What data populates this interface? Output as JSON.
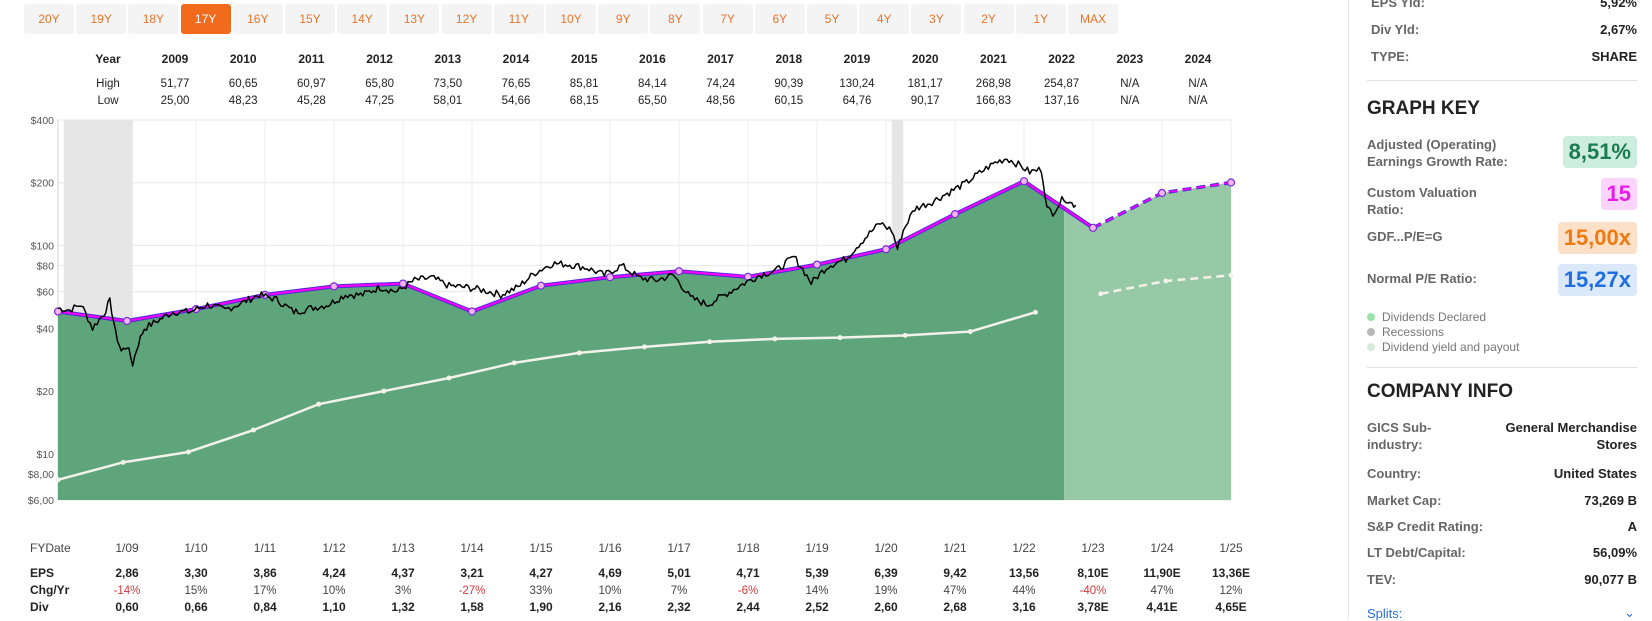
{
  "range_buttons": [
    "20Y",
    "19Y",
    "18Y",
    "17Y",
    "16Y",
    "15Y",
    "14Y",
    "13Y",
    "12Y",
    "11Y",
    "10Y",
    "9Y",
    "8Y",
    "7Y",
    "6Y",
    "5Y",
    "4Y",
    "3Y",
    "2Y",
    "1Y",
    "MAX"
  ],
  "active_range": "17Y",
  "price_table": {
    "year_label": "Year",
    "high_label": "High",
    "low_label": "Low",
    "years": [
      "2009",
      "2010",
      "2011",
      "2012",
      "2013",
      "2014",
      "2015",
      "2016",
      "2017",
      "2018",
      "2019",
      "2020",
      "2021",
      "2022",
      "2023",
      "2024"
    ],
    "high": [
      "51,77",
      "60,65",
      "60,97",
      "65,80",
      "73,50",
      "76,65",
      "85,81",
      "84,14",
      "74,24",
      "90,39",
      "130,24",
      "181,17",
      "268,98",
      "254,87",
      "N/A",
      "N/A"
    ],
    "low": [
      "25,00",
      "48,23",
      "45,28",
      "47,25",
      "58,01",
      "54,66",
      "68,15",
      "65,50",
      "48,56",
      "60,15",
      "64,76",
      "90,17",
      "166,83",
      "137,16",
      "N/A",
      "N/A"
    ]
  },
  "chart_data": {
    "type": "area",
    "title": "",
    "xlabel": "FY Date",
    "ylabel": "",
    "y_scale": "log",
    "ylim": [
      6,
      400
    ],
    "y_ticks": [
      400,
      200,
      100,
      80,
      60,
      40,
      20,
      10,
      8,
      6
    ],
    "y_tick_labels": [
      "$400",
      "$200",
      "$100",
      "$80",
      "$60",
      "$40",
      "$20",
      "$10",
      "$8,00",
      "$6,00"
    ],
    "fy_date_label": "FYDate",
    "fy_dates": [
      "1/09",
      "1/10",
      "1/11",
      "1/12",
      "1/13",
      "1/14",
      "1/15",
      "1/16",
      "1/17",
      "1/18",
      "1/19",
      "1/20",
      "1/21",
      "1/22",
      "1/23",
      "1/24",
      "1/25"
    ],
    "x_start": "1/08",
    "recessions": [
      [
        "2/08",
        "2/09"
      ],
      [
        "2/20",
        "4/20"
      ]
    ],
    "projection_start": "8/22",
    "earnings_value_line": [
      48.2,
      43.4,
      49.5,
      57.9,
      63.6,
      65.6,
      48.2,
      64.1,
      70.4,
      75.2,
      70.7,
      80.9,
      95.9,
      141.3,
      203.4,
      121.5,
      178.5,
      200.4
    ],
    "normal_pe_line": [
      7.5,
      9.1,
      10.2,
      13.0,
      17.3,
      20.0,
      23.1,
      27.3,
      30.5,
      32.6,
      34.5,
      35.6,
      36.1,
      37.0,
      38.6,
      47.8,
      58.6,
      67.5,
      71.9
    ],
    "price_series": [
      [
        "1/08",
        50
      ],
      [
        "3/08",
        49
      ],
      [
        "5/08",
        52
      ],
      [
        "7/08",
        40
      ],
      [
        "9/08",
        47
      ],
      [
        "10/08",
        54
      ],
      [
        "11/08",
        38
      ],
      [
        "12/08",
        31
      ],
      [
        "1/09",
        33
      ],
      [
        "2/09",
        27
      ],
      [
        "3/09",
        34
      ],
      [
        "4/09",
        40
      ],
      [
        "6/09",
        43
      ],
      [
        "9/09",
        48
      ],
      [
        "12/09",
        48
      ],
      [
        "3/10",
        52
      ],
      [
        "6/10",
        49
      ],
      [
        "9/10",
        53
      ],
      [
        "12/10",
        58
      ],
      [
        "3/11",
        55
      ],
      [
        "6/11",
        48
      ],
      [
        "9/11",
        50
      ],
      [
        "12/11",
        52
      ],
      [
        "3/12",
        58
      ],
      [
        "6/12",
        58
      ],
      [
        "9/12",
        63
      ],
      [
        "12/12",
        60
      ],
      [
        "3/13",
        68
      ],
      [
        "6/13",
        70
      ],
      [
        "9/13",
        64
      ],
      [
        "12/13",
        63
      ],
      [
        "3/14",
        61
      ],
      [
        "6/14",
        58
      ],
      [
        "9/14",
        63
      ],
      [
        "12/14",
        74
      ],
      [
        "3/15",
        82
      ],
      [
        "6/15",
        81
      ],
      [
        "9/15",
        78
      ],
      [
        "12/15",
        72
      ],
      [
        "3/16",
        80
      ],
      [
        "6/16",
        70
      ],
      [
        "9/16",
        68
      ],
      [
        "12/16",
        72
      ],
      [
        "3/17",
        56
      ],
      [
        "6/17",
        52
      ],
      [
        "9/17",
        58
      ],
      [
        "12/17",
        65
      ],
      [
        "3/18",
        72
      ],
      [
        "6/18",
        76
      ],
      [
        "9/18",
        88
      ],
      [
        "12/18",
        66
      ],
      [
        "3/19",
        80
      ],
      [
        "6/19",
        86
      ],
      [
        "9/19",
        106
      ],
      [
        "12/19",
        128
      ],
      [
        "2/20",
        118
      ],
      [
        "3/20",
        96
      ],
      [
        "4/20",
        118
      ],
      [
        "6/20",
        150
      ],
      [
        "9/20",
        162
      ],
      [
        "12/20",
        180
      ],
      [
        "3/21",
        200
      ],
      [
        "6/21",
        230
      ],
      [
        "8/21",
        250
      ],
      [
        "10/21",
        262
      ],
      [
        "12/21",
        245
      ],
      [
        "2/22",
        225
      ],
      [
        "4/22",
        232
      ],
      [
        "5/22",
        150
      ],
      [
        "6/22",
        144
      ],
      [
        "8/22",
        170
      ],
      [
        "9/22",
        160
      ],
      [
        "10/22",
        156
      ]
    ],
    "eps_row_label": "EPS",
    "chg_row_label": "Chg/Yr",
    "div_row_label": "Div",
    "eps": [
      "2,86",
      "3,30",
      "3,86",
      "4,24",
      "4,37",
      "3,21",
      "4,27",
      "4,69",
      "5,01",
      "4,71",
      "5,39",
      "6,39",
      "9,42",
      "13,56",
      "8,10E",
      "11,90E",
      "13,36E"
    ],
    "chg_yr": [
      "-14%",
      "15%",
      "17%",
      "10%",
      "3%",
      "-27%",
      "33%",
      "10%",
      "7%",
      "-6%",
      "14%",
      "19%",
      "47%",
      "44%",
      "-40%",
      "47%",
      "12%"
    ],
    "div": [
      "0,60",
      "0,66",
      "0,84",
      "1,10",
      "1,32",
      "1,58",
      "1,90",
      "2,16",
      "2,32",
      "2,44",
      "2,52",
      "2,60",
      "2,68",
      "3,16",
      "3,78E",
      "4,41E",
      "4,65E"
    ],
    "colors": {
      "earnings_area": "#5ea57b",
      "projected_area": "#97c9a7",
      "recession_band": "#e6e6e6",
      "value_line_magenta": "#ff00ff",
      "value_line_blue": "#4a2bd9",
      "normal_pe_line": "#f2f2ea",
      "price_line": "#000000",
      "negative_change": "#d03a3a"
    }
  },
  "side": {
    "eps_yld_label": "EPS Yld:",
    "eps_yld_value": "5,92%",
    "div_yld_label": "Div Yld:",
    "div_yld_value": "2,67%",
    "type_label": "TYPE:",
    "type_value": "SHARE",
    "graph_key_title": "GRAPH KEY",
    "key_items": [
      {
        "label": "Adjusted (Operating) Earnings Growth Rate:",
        "value": "8,51%",
        "bg": "#cdeedf",
        "fg": "#1b7a4e"
      },
      {
        "label": "Custom Valuation Ratio:",
        "value": "15",
        "bg": "#fbd4fb",
        "fg": "#e81ee8"
      },
      {
        "label": "GDF...P/E=G",
        "value": "15,00x",
        "bg": "#fde0c8",
        "fg": "#f07a12"
      },
      {
        "label": "Normal P/E Ratio:",
        "value": "15,27x",
        "bg": "#dbe9fb",
        "fg": "#1f6fe0"
      }
    ],
    "legend": [
      {
        "label": "Dividends Declared",
        "color": "#9be3a8"
      },
      {
        "label": "Recessions",
        "color": "#b8b8b8"
      },
      {
        "label": "Dividend yield and payout",
        "color": "#d6ebd9"
      }
    ],
    "company_info_title": "COMPANY INFO",
    "info": [
      {
        "label": "GICS Sub-industry:",
        "value": "General Merchandise Stores"
      },
      {
        "label": "Country:",
        "value": "United States"
      },
      {
        "label": "Market Cap:",
        "value": "73,269 B"
      },
      {
        "label": "S&P Credit Rating:",
        "value": "A"
      },
      {
        "label": "LT Debt/Capital:",
        "value": "56,09%"
      },
      {
        "label": "TEV:",
        "value": "90,077 B"
      }
    ],
    "splits_label": "Splits:",
    "splits_icon": "chevron-down-icon"
  }
}
